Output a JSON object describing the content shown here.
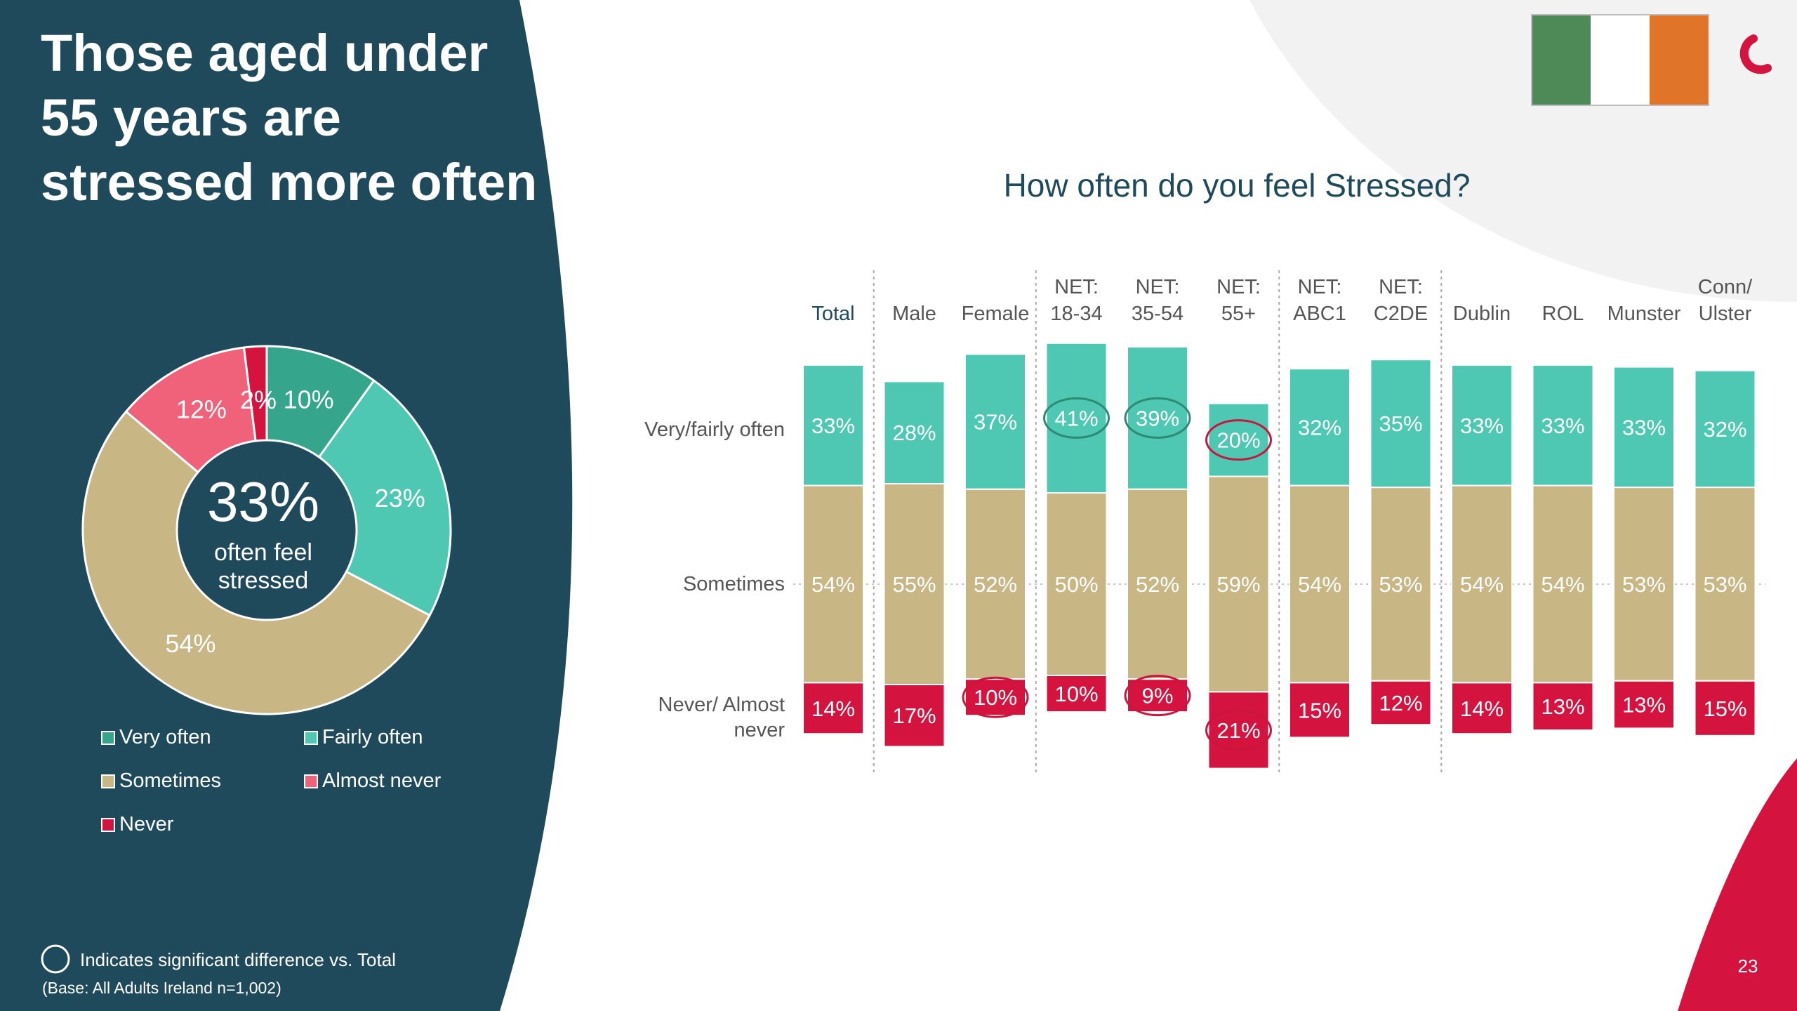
{
  "headline": {
    "lines": [
      "Those aged under",
      "55 years are",
      "stressed more often"
    ]
  },
  "colors": {
    "panel": "#1f4a5c",
    "very_often": "#35a58c",
    "fairly_often": "#4ec8b2",
    "sometimes": "#c8b685",
    "almost_never": "#f0617a",
    "never": "#d4133f",
    "sig_green": "#2e8a74",
    "sig_red": "#c8163e",
    "flag_green": "#4d8a57",
    "flag_white": "#ffffff",
    "flag_orange": "#e07428",
    "brand_red": "#d4133f"
  },
  "donut": {
    "center_value": "33%",
    "center_label_line1": "often feel",
    "center_label_line2": "stressed"
  },
  "legend": [
    "Very often",
    "Fairly often",
    "Sometimes",
    "Almost never",
    "Never"
  ],
  "chart_data": [
    {
      "type": "pie",
      "categories": [
        "Very often",
        "Fairly often",
        "Sometimes",
        "Almost never",
        "Never"
      ],
      "values": [
        10,
        23,
        54,
        12,
        2
      ],
      "labels": [
        "10%",
        "23%",
        "54%",
        "12%",
        "2%"
      ]
    },
    {
      "type": "bar",
      "stacked": true,
      "title": "How often do you feel Stressed?",
      "categories": [
        [
          "Total"
        ],
        [
          "Male"
        ],
        [
          "Female"
        ],
        [
          "NET:",
          "18-34"
        ],
        [
          "NET:",
          "35-54"
        ],
        [
          "NET:",
          "55+"
        ],
        [
          "NET:",
          "ABC1"
        ],
        [
          "NET:",
          "C2DE"
        ],
        [
          "Dublin"
        ],
        [
          "ROL"
        ],
        [
          "Munster"
        ],
        [
          "Conn/",
          "Ulster"
        ]
      ],
      "row_labels": [
        [
          "Very/fairly often"
        ],
        [
          "Sometimes"
        ],
        [
          "Never/ Almost",
          "never"
        ]
      ],
      "series": [
        {
          "name": "Very/fairly often",
          "values": [
            33,
            28,
            37,
            41,
            39,
            20,
            32,
            35,
            33,
            33,
            33,
            32
          ]
        },
        {
          "name": "Sometimes",
          "values": [
            54,
            55,
            52,
            50,
            52,
            59,
            54,
            53,
            54,
            54,
            53,
            53
          ]
        },
        {
          "name": "Never/ Almost never",
          "values": [
            14,
            17,
            10,
            10,
            9,
            21,
            15,
            12,
            14,
            13,
            13,
            15
          ]
        }
      ],
      "significant": [
        {
          "category_index": 3,
          "series_index": 0,
          "direction": "higher"
        },
        {
          "category_index": 4,
          "series_index": 0,
          "direction": "higher"
        },
        {
          "category_index": 5,
          "series_index": 0,
          "direction": "lower"
        },
        {
          "category_index": 2,
          "series_index": 2,
          "direction": "lower"
        },
        {
          "category_index": 4,
          "series_index": 2,
          "direction": "lower"
        },
        {
          "category_index": 5,
          "series_index": 2,
          "direction": "higher"
        }
      ]
    }
  ],
  "footer": {
    "significance_note": "Indicates significant difference vs. Total",
    "base_note": "(Base: All Adults Ireland  n=1,002)",
    "page_number": "23"
  }
}
